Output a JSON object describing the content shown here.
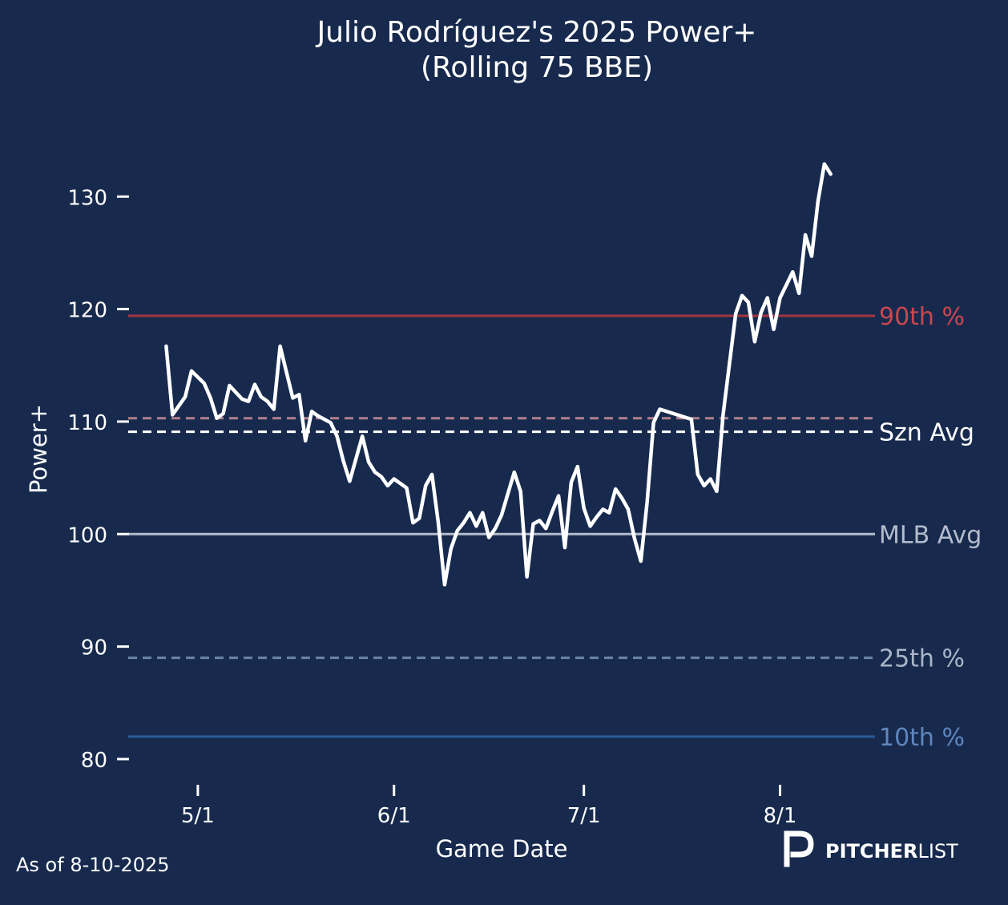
{
  "footer": {
    "as_of": "As of 8-10-2025",
    "brand_bold": "PITCHER",
    "brand_light": "LIST"
  },
  "colors": {
    "background": "#172a4e",
    "player_line": "#ffffff",
    "p90": "#a3353f",
    "szn_avg": "#ffffff",
    "szn_avg_secondary": "#b07f8b",
    "mlb_avg": "#b4bccc",
    "p25": "#6b84a8",
    "p10": "#2a5a96",
    "p90_label": "#c9474f",
    "p25_label": "#aab5c9",
    "p10_label": "#5f86be"
  },
  "chart_data": {
    "type": "line",
    "title": "Julio Rodríguez's 2025 Power+",
    "subtitle": "(Rolling 75 BBE)",
    "xlabel": "Game Date",
    "ylabel": "Power+",
    "ylim": [
      78.5,
      137.5
    ],
    "xlim": [
      "2025-04-20",
      "2025-08-16"
    ],
    "yticks": [
      80,
      90,
      100,
      110,
      120,
      130
    ],
    "xticks": [
      {
        "date": "2025-05-01",
        "label": "5/1"
      },
      {
        "date": "2025-06-01",
        "label": "6/1"
      },
      {
        "date": "2025-07-01",
        "label": "7/1"
      },
      {
        "date": "2025-08-01",
        "label": "8/1"
      }
    ],
    "grid": false,
    "reference_lines": [
      {
        "label": "90th %",
        "value": 119.4,
        "style": "solid",
        "color_key": "p90",
        "label_color_key": "p90_label"
      },
      {
        "label": "",
        "value": 110.3,
        "style": "dashed",
        "color_key": "szn_avg_secondary",
        "label_color_key": "szn_avg_secondary"
      },
      {
        "label": "Szn Avg",
        "value": 109.1,
        "style": "dashed",
        "color_key": "szn_avg",
        "label_color_key": "szn_avg"
      },
      {
        "label": "MLB Avg",
        "value": 100.0,
        "style": "solid",
        "color_key": "mlb_avg",
        "label_color_key": "mlb_avg"
      },
      {
        "label": "25th %",
        "value": 89.0,
        "style": "dashed",
        "color_key": "p25",
        "label_color_key": "p25_label"
      },
      {
        "label": "10th %",
        "value": 82.0,
        "style": "solid",
        "color_key": "p10",
        "label_color_key": "p10_label"
      }
    ],
    "series": [
      {
        "x": [
          "2025-04-26",
          "2025-04-27",
          "2025-04-29",
          "2025-04-30",
          "2025-05-02",
          "2025-05-03",
          "2025-05-04",
          "2025-05-05",
          "2025-05-06",
          "2025-05-08",
          "2025-05-09",
          "2025-05-10",
          "2025-05-11",
          "2025-05-12",
          "2025-05-13",
          "2025-05-14",
          "2025-05-15",
          "2025-05-16",
          "2025-05-17",
          "2025-05-18",
          "2025-05-19",
          "2025-05-20",
          "2025-05-22",
          "2025-05-23",
          "2025-05-24",
          "2025-05-25",
          "2025-05-26",
          "2025-05-27",
          "2025-05-28",
          "2025-05-29",
          "2025-05-30",
          "2025-05-31",
          "2025-06-01",
          "2025-06-02",
          "2025-06-03",
          "2025-06-04",
          "2025-06-05",
          "2025-06-06",
          "2025-06-07",
          "2025-06-08",
          "2025-06-09",
          "2025-06-10",
          "2025-06-11",
          "2025-06-12",
          "2025-06-13",
          "2025-06-14",
          "2025-06-15",
          "2025-06-16",
          "2025-06-17",
          "2025-06-18",
          "2025-06-19",
          "2025-06-20",
          "2025-06-21",
          "2025-06-22",
          "2025-06-23",
          "2025-06-24",
          "2025-06-25",
          "2025-06-26",
          "2025-06-27",
          "2025-06-28",
          "2025-06-29",
          "2025-06-30",
          "2025-07-01",
          "2025-07-02",
          "2025-07-03",
          "2025-07-04",
          "2025-07-05",
          "2025-07-06",
          "2025-07-07",
          "2025-07-08",
          "2025-07-09",
          "2025-07-10",
          "2025-07-11",
          "2025-07-12",
          "2025-07-13",
          "2025-07-18",
          "2025-07-19",
          "2025-07-20",
          "2025-07-21",
          "2025-07-22",
          "2025-07-23",
          "2025-07-25",
          "2025-07-26",
          "2025-07-27",
          "2025-07-28",
          "2025-07-29",
          "2025-07-30",
          "2025-07-31",
          "2025-08-01",
          "2025-08-03",
          "2025-08-04",
          "2025-08-05",
          "2025-08-06",
          "2025-08-07",
          "2025-08-08",
          "2025-08-09"
        ],
        "y": [
          116.7,
          110.6,
          112.2,
          114.5,
          113.4,
          112.1,
          110.3,
          110.7,
          113.2,
          112.0,
          111.8,
          113.3,
          112.2,
          111.8,
          111.1,
          116.7,
          114.4,
          112.1,
          112.4,
          108.3,
          110.9,
          110.5,
          109.9,
          108.7,
          106.5,
          104.7,
          106.7,
          108.7,
          106.4,
          105.5,
          105.1,
          104.3,
          104.9,
          104.5,
          104.1,
          101.0,
          101.4,
          104.3,
          105.3,
          101.0,
          95.5,
          98.7,
          100.3,
          101.0,
          101.9,
          100.7,
          101.9,
          99.7,
          100.5,
          101.7,
          103.6,
          105.5,
          103.8,
          96.2,
          100.9,
          101.2,
          100.5,
          102.0,
          103.4,
          98.8,
          104.6,
          106.0,
          102.3,
          100.7,
          101.5,
          102.2,
          101.9,
          104.0,
          103.2,
          102.2,
          99.6,
          97.6,
          102.9,
          109.9,
          111.1,
          110.2,
          105.3,
          104.3,
          104.9,
          103.8,
          110.6,
          119.6,
          121.2,
          120.6,
          117.1,
          119.7,
          121.0,
          118.2,
          121.0,
          123.3,
          121.4,
          126.6,
          124.7,
          129.6,
          132.9,
          132.0
        ]
      }
    ]
  }
}
